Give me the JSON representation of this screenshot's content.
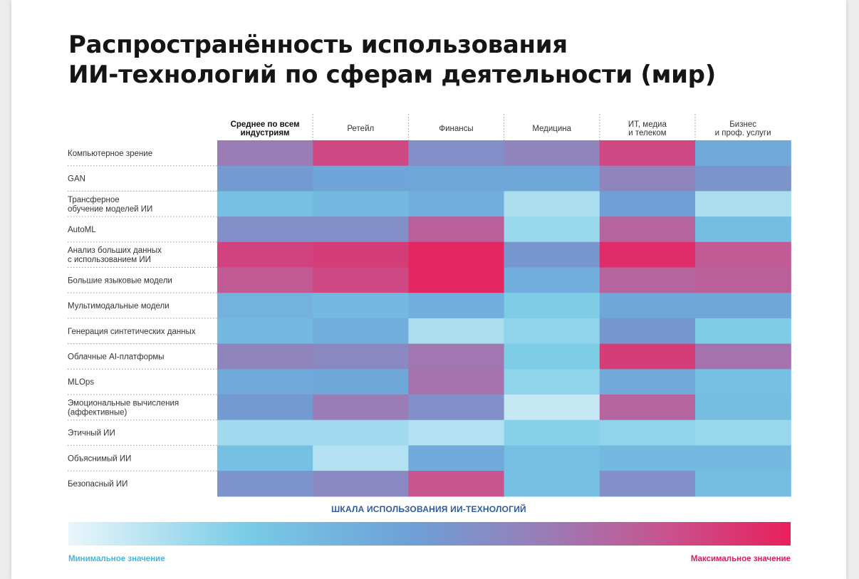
{
  "title_lines": [
    "Распространённость использования",
    "ИИ-технологий по сферам деятельности (мир)"
  ],
  "scale": {
    "label": "ШКАЛА ИСПОЛЬЗОВАНИЯ ИИ-ТЕХНОЛОГИЙ",
    "min_label": "Минимальное значение",
    "max_label": "Максимальное значение",
    "min_color": "#eaf6fb",
    "max_color": "#e8205c"
  },
  "chart_data": {
    "type": "heatmap",
    "value_range": [
      0,
      1
    ],
    "columns": [
      "Среднее по всем\nиндустриям",
      "Ретейл",
      "Финансы",
      "Медицина",
      "ИТ, медиа\nи телеком",
      "Бизнес\nи проф. услуги"
    ],
    "rows": [
      "Компьютерное зрение",
      "GAN",
      "Трансферное\nобучение моделей ИИ",
      "AutoML",
      "Анализ больших данных\nс использованием ИИ",
      "Большие языковые модели",
      "Мультимодальные модели",
      "Генерация синтетических данных",
      "Облачные AI-платформы",
      "MLOps",
      "Эмоциональные вычисления\n(аффективные)",
      "Этичный ИИ",
      "Объяснимый ИИ",
      "Безопасный ИИ"
    ],
    "values": [
      [
        0.66,
        0.86,
        0.56,
        0.62,
        0.86,
        0.42
      ],
      [
        0.5,
        0.45,
        0.44,
        0.44,
        0.62,
        0.54
      ],
      [
        0.3,
        0.34,
        0.4,
        0.14,
        0.48,
        0.14
      ],
      [
        0.56,
        0.56,
        0.78,
        0.18,
        0.76,
        0.32
      ],
      [
        0.88,
        0.9,
        0.98,
        0.52,
        0.96,
        0.8
      ],
      [
        0.8,
        0.86,
        0.98,
        0.4,
        0.76,
        0.78
      ],
      [
        0.38,
        0.34,
        0.4,
        0.24,
        0.44,
        0.44
      ],
      [
        0.34,
        0.4,
        0.14,
        0.2,
        0.52,
        0.24
      ],
      [
        0.62,
        0.6,
        0.68,
        0.24,
        0.9,
        0.7
      ],
      [
        0.42,
        0.44,
        0.7,
        0.2,
        0.42,
        0.3
      ],
      [
        0.5,
        0.66,
        0.56,
        0.08,
        0.76,
        0.32
      ],
      [
        0.16,
        0.16,
        0.12,
        0.22,
        0.2,
        0.18
      ],
      [
        0.3,
        0.12,
        0.42,
        0.3,
        0.34,
        0.34
      ],
      [
        0.54,
        0.6,
        0.82,
        0.3,
        0.56,
        0.32
      ]
    ]
  }
}
